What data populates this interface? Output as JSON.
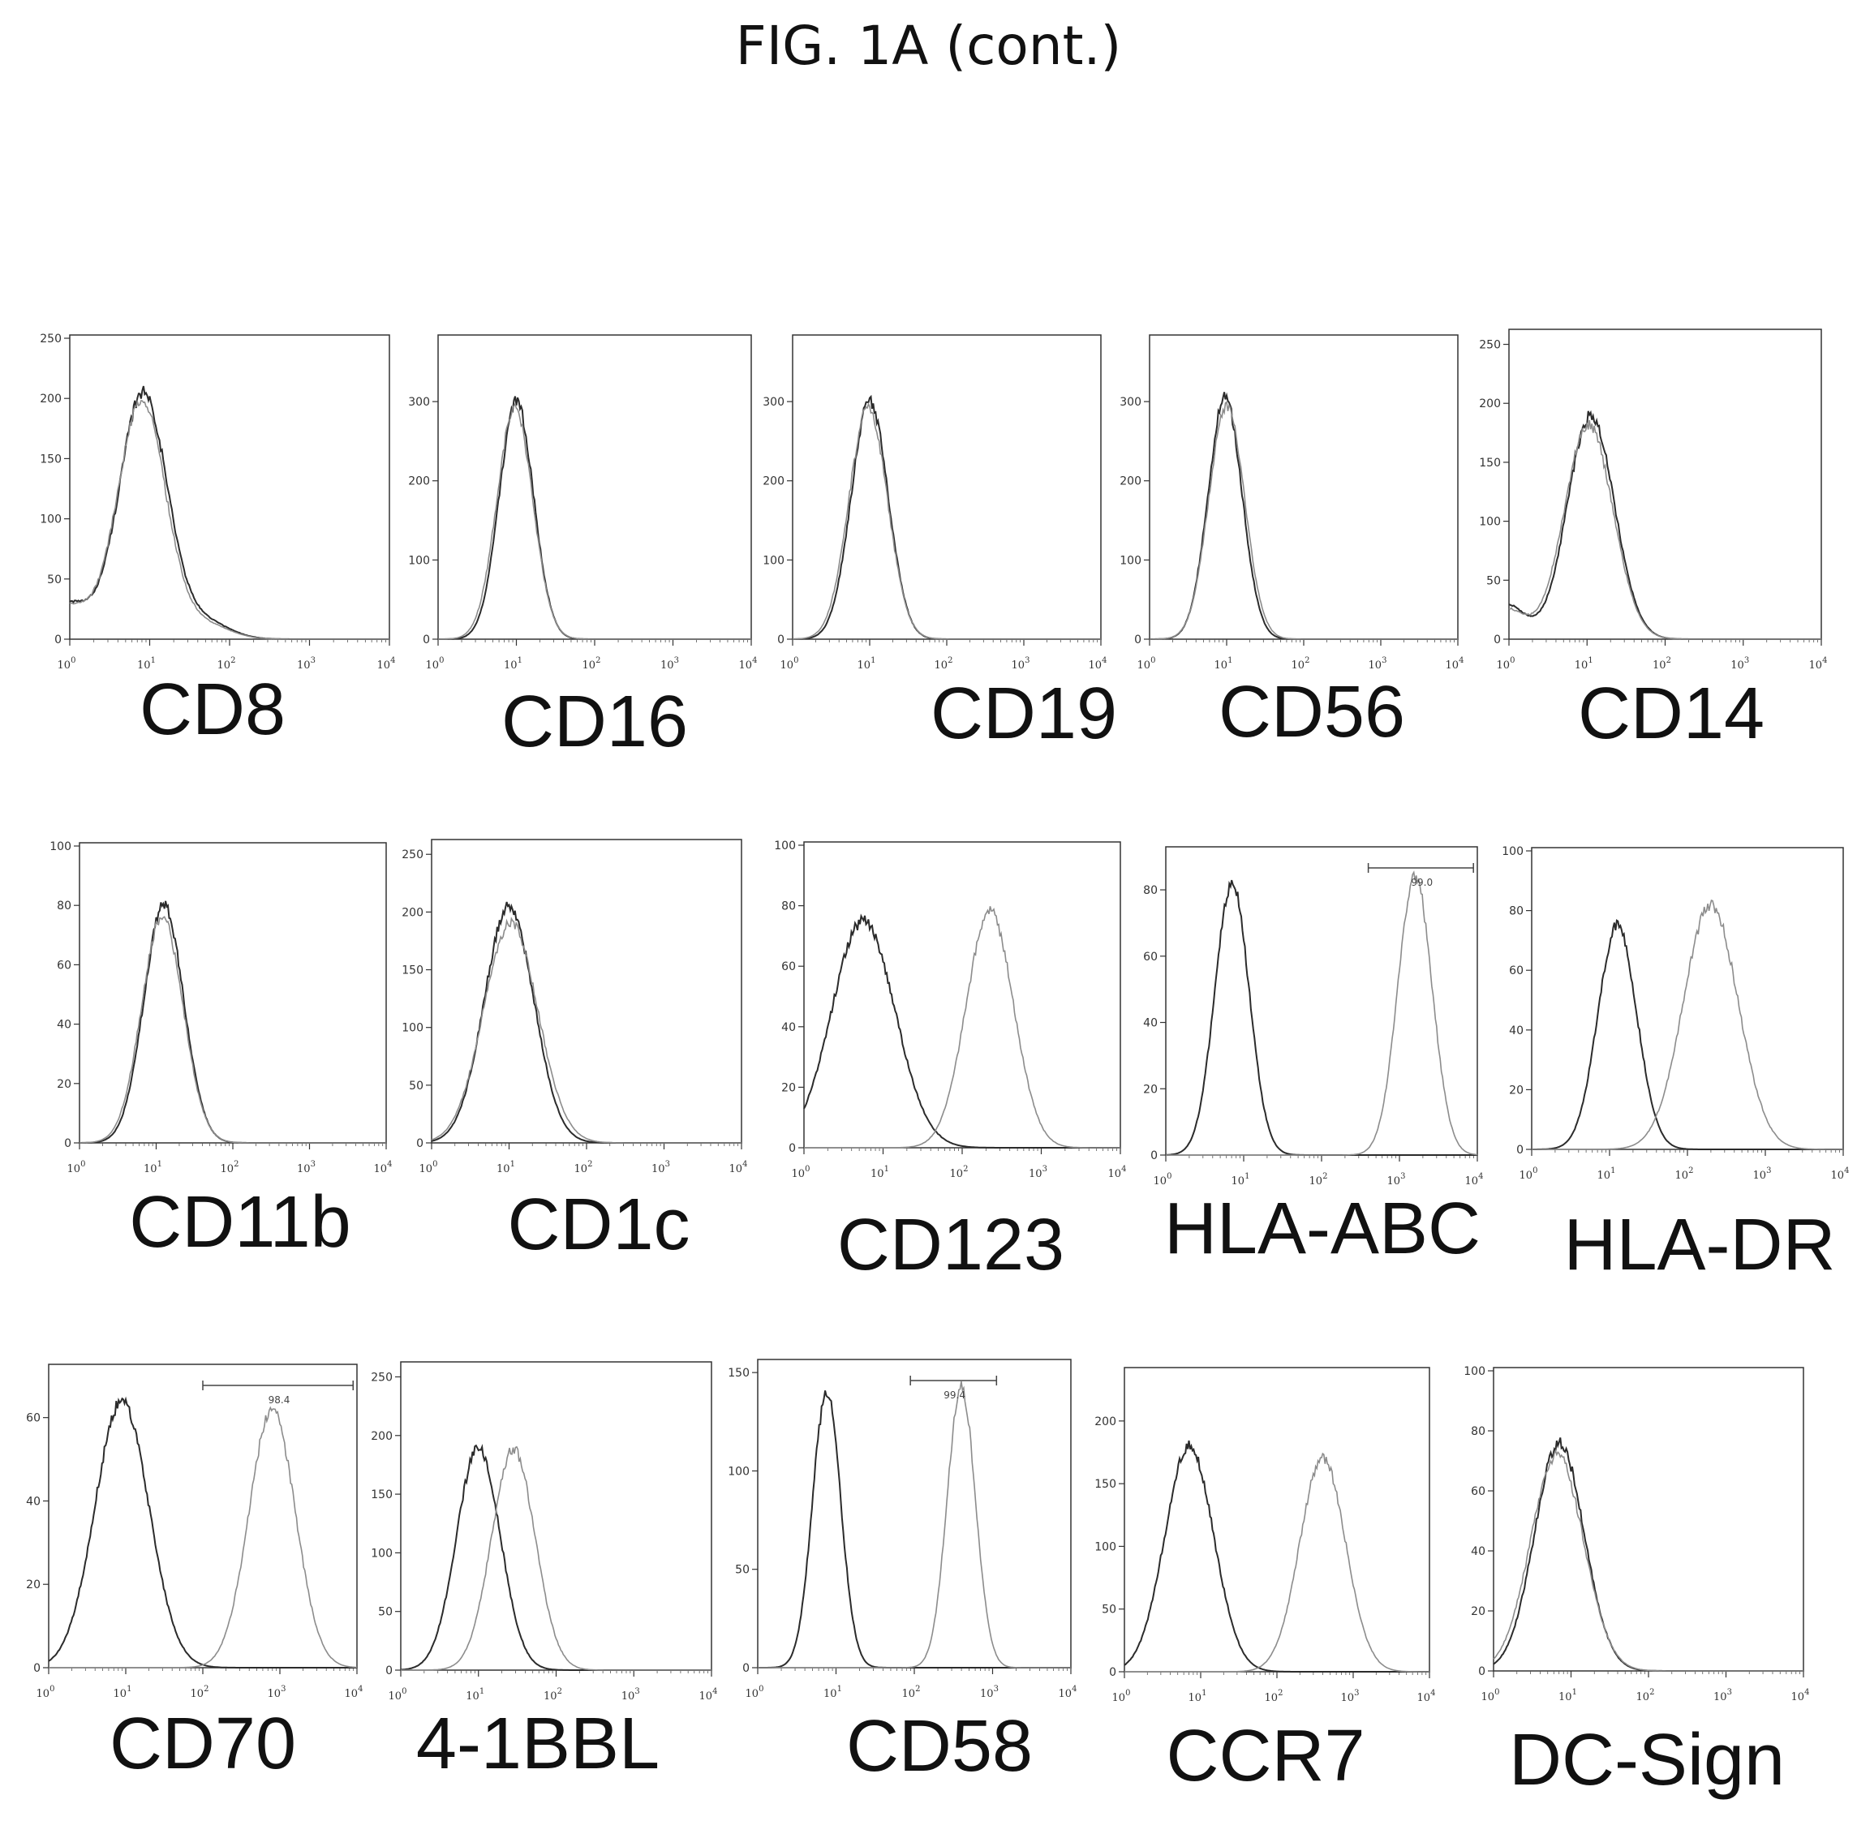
{
  "figure": {
    "title": "FIG. 1A (cont.)"
  },
  "chart_data": [
    {
      "type": "line",
      "label": "CD8",
      "x_axis": "log",
      "xlim": [
        1,
        10000
      ],
      "xticks": [
        "10^0",
        "10^1",
        "10^2",
        "10^3",
        "10^4"
      ],
      "ylim": [
        0,
        250
      ],
      "yticks": [
        0,
        50,
        100,
        150,
        200,
        250
      ],
      "series": [
        {
          "curves": [
            {
              "mean": 0.92,
              "sd": 0.3,
              "peak": 205
            },
            {
              "mean": -0.05,
              "sd": 0.3,
              "peak": 30
            },
            {
              "mean": 1.7,
              "sd": 0.3,
              "peak": 14
            }
          ]
        },
        {
          "curves": [
            {
              "mean": 0.9,
              "sd": 0.3,
              "peak": 198
            },
            {
              "mean": -0.05,
              "sd": 0.3,
              "peak": 28
            },
            {
              "mean": 1.7,
              "sd": 0.3,
              "peak": 12
            }
          ]
        }
      ]
    },
    {
      "type": "line",
      "label": "CD16",
      "x_axis": "log",
      "xlim": [
        1,
        10000
      ],
      "xticks": [
        "10^0",
        "10^1",
        "10^2",
        "10^3",
        "10^4"
      ],
      "ylim": [
        0,
        380
      ],
      "yticks": [
        0,
        100,
        200,
        300
      ],
      "series": [
        {
          "curves": [
            {
              "mean": 1.0,
              "sd": 0.22,
              "peak": 300
            }
          ]
        },
        {
          "curves": [
            {
              "mean": 0.98,
              "sd": 0.23,
              "peak": 290
            }
          ]
        }
      ]
    },
    {
      "type": "line",
      "label": "CD19",
      "x_axis": "log",
      "xlim": [
        1,
        10000
      ],
      "xticks": [
        "10^0",
        "10^1",
        "10^2",
        "10^3",
        "10^4"
      ],
      "ylim": [
        0,
        380
      ],
      "yticks": [
        0,
        100,
        200,
        300
      ],
      "series": [
        {
          "curves": [
            {
              "mean": 1.0,
              "sd": 0.24,
              "peak": 300
            }
          ]
        },
        {
          "curves": [
            {
              "mean": 0.98,
              "sd": 0.25,
              "peak": 292
            }
          ]
        }
      ]
    },
    {
      "type": "line",
      "label": "CD56",
      "x_axis": "log",
      "xlim": [
        1,
        10000
      ],
      "xticks": [
        "10^0",
        "10^1",
        "10^2",
        "10^3",
        "10^4"
      ],
      "ylim": [
        0,
        380
      ],
      "yticks": [
        0,
        100,
        200,
        300
      ],
      "series": [
        {
          "curves": [
            {
              "mean": 0.98,
              "sd": 0.22,
              "peak": 305
            }
          ]
        },
        {
          "curves": [
            {
              "mean": 1.0,
              "sd": 0.23,
              "peak": 296
            }
          ]
        }
      ]
    },
    {
      "type": "line",
      "label": "CD14",
      "x_axis": "log",
      "xlim": [
        1,
        10000
      ],
      "xticks": [
        "10^0",
        "10^1",
        "10^2",
        "10^3",
        "10^4"
      ],
      "ylim": [
        0,
        260
      ],
      "yticks": [
        0,
        50,
        100,
        150,
        200,
        250
      ],
      "series": [
        {
          "curves": [
            {
              "mean": 1.05,
              "sd": 0.3,
              "peak": 190
            },
            {
              "mean": -0.05,
              "sd": 0.25,
              "peak": 30
            }
          ]
        },
        {
          "curves": [
            {
              "mean": 1.02,
              "sd": 0.31,
              "peak": 182
            },
            {
              "mean": -0.05,
              "sd": 0.25,
              "peak": 26
            }
          ]
        }
      ]
    },
    {
      "type": "line",
      "label": "CD11b",
      "x_axis": "log",
      "xlim": [
        1,
        10000
      ],
      "xticks": [
        "10^0",
        "10^1",
        "10^2",
        "10^3",
        "10^4"
      ],
      "ylim": [
        0,
        100
      ],
      "yticks": [
        0,
        20,
        40,
        60,
        80,
        100
      ],
      "series": [
        {
          "curves": [
            {
              "mean": 1.1,
              "sd": 0.26,
              "peak": 80
            }
          ]
        },
        {
          "curves": [
            {
              "mean": 1.08,
              "sd": 0.27,
              "peak": 76
            }
          ]
        }
      ]
    },
    {
      "type": "line",
      "label": "CD1c",
      "x_axis": "log",
      "xlim": [
        1,
        10000
      ],
      "xticks": [
        "10^0",
        "10^1",
        "10^2",
        "10^3",
        "10^4"
      ],
      "ylim": [
        0,
        260
      ],
      "yticks": [
        0,
        50,
        100,
        150,
        200,
        250
      ],
      "series": [
        {
          "curves": [
            {
              "mean": 1.0,
              "sd": 0.32,
              "peak": 205
            }
          ]
        },
        {
          "curves": [
            {
              "mean": 1.02,
              "sd": 0.35,
              "peak": 190
            }
          ]
        }
      ]
    },
    {
      "type": "line",
      "label": "CD123",
      "x_axis": "log",
      "xlim": [
        1,
        10000
      ],
      "xticks": [
        "10^0",
        "10^1",
        "10^2",
        "10^3",
        "10^4"
      ],
      "ylim": [
        0,
        100
      ],
      "yticks": [
        0,
        20,
        40,
        60,
        80,
        100
      ],
      "series": [
        {
          "curves": [
            {
              "mean": 0.75,
              "sd": 0.4,
              "peak": 75
            }
          ]
        },
        {
          "curves": [
            {
              "mean": 2.35,
              "sd": 0.3,
              "peak": 78
            }
          ]
        }
      ]
    },
    {
      "type": "line",
      "label": "HLA-ABC",
      "x_axis": "log",
      "xlim": [
        1,
        10000
      ],
      "xticks": [
        "10^0",
        "10^1",
        "10^2",
        "10^3",
        "10^4"
      ],
      "ylim": [
        0,
        92
      ],
      "yticks": [
        0,
        20,
        40,
        60,
        80
      ],
      "gate": {
        "text": "99.0",
        "from": 2.6,
        "to": 3.95
      },
      "series": [
        {
          "curves": [
            {
              "mean": 0.85,
              "sd": 0.22,
              "peak": 82
            }
          ]
        },
        {
          "curves": [
            {
              "mean": 3.2,
              "sd": 0.22,
              "peak": 84
            }
          ]
        }
      ]
    },
    {
      "type": "line",
      "label": "HLA-DR",
      "x_axis": "log",
      "xlim": [
        1,
        10000
      ],
      "xticks": [
        "10^0",
        "10^1",
        "10^2",
        "10^3",
        "10^4"
      ],
      "ylim": [
        0,
        100
      ],
      "yticks": [
        0,
        20,
        40,
        60,
        80,
        100
      ],
      "series": [
        {
          "curves": [
            {
              "mean": 1.1,
              "sd": 0.25,
              "peak": 75
            }
          ]
        },
        {
          "curves": [
            {
              "mean": 2.3,
              "sd": 0.35,
              "peak": 82
            }
          ]
        }
      ]
    },
    {
      "type": "line",
      "label": "CD70",
      "x_axis": "log",
      "xlim": [
        1,
        10000
      ],
      "xticks": [
        "10^0",
        "10^1",
        "10^2",
        "10^3",
        "10^4"
      ],
      "ylim": [
        0,
        72
      ],
      "yticks": [
        0,
        20,
        40,
        60
      ],
      "gate": {
        "text": "98.4",
        "from": 2.0,
        "to": 3.95
      },
      "series": [
        {
          "curves": [
            {
              "mean": 0.95,
              "sd": 0.35,
              "peak": 64
            }
          ]
        },
        {
          "curves": [
            {
              "mean": 2.9,
              "sd": 0.3,
              "peak": 62
            }
          ]
        }
      ]
    },
    {
      "type": "line",
      "label": "4-1BBL",
      "x_axis": "log",
      "xlim": [
        1,
        10000
      ],
      "xticks": [
        "10^0",
        "10^1",
        "10^2",
        "10^3",
        "10^4"
      ],
      "ylim": [
        0,
        260
      ],
      "yticks": [
        0,
        50,
        100,
        150,
        200,
        250
      ],
      "series": [
        {
          "curves": [
            {
              "mean": 1.0,
              "sd": 0.28,
              "peak": 190
            }
          ]
        },
        {
          "curves": [
            {
              "mean": 1.45,
              "sd": 0.28,
              "peak": 188
            }
          ]
        }
      ]
    },
    {
      "type": "line",
      "label": "CD58",
      "x_axis": "log",
      "xlim": [
        1,
        10000
      ],
      "xticks": [
        "10^0",
        "10^1",
        "10^2",
        "10^3",
        "10^4"
      ],
      "ylim": [
        0,
        155
      ],
      "yticks": [
        0,
        50,
        100,
        150
      ],
      "gate": {
        "text": "99.4",
        "from": 1.95,
        "to": 3.05
      },
      "series": [
        {
          "curves": [
            {
              "mean": 0.88,
              "sd": 0.18,
              "peak": 140
            }
          ]
        },
        {
          "curves": [
            {
              "mean": 2.6,
              "sd": 0.18,
              "peak": 143
            }
          ]
        }
      ]
    },
    {
      "type": "line",
      "label": "CCR7",
      "x_axis": "log",
      "xlim": [
        1,
        10000
      ],
      "xticks": [
        "10^0",
        "10^1",
        "10^2",
        "10^3",
        "10^4"
      ],
      "ylim": [
        0,
        240
      ],
      "yticks": [
        0,
        50,
        100,
        150,
        200
      ],
      "series": [
        {
          "curves": [
            {
              "mean": 0.85,
              "sd": 0.32,
              "peak": 180
            }
          ]
        },
        {
          "curves": [
            {
              "mean": 2.6,
              "sd": 0.3,
              "peak": 170
            }
          ]
        }
      ]
    },
    {
      "type": "line",
      "label": "DC-Sign",
      "x_axis": "log",
      "xlim": [
        1,
        10000
      ],
      "xticks": [
        "10^0",
        "10^1",
        "10^2",
        "10^3",
        "10^4"
      ],
      "ylim": [
        0,
        100
      ],
      "yticks": [
        0,
        20,
        40,
        60,
        80,
        100
      ],
      "series": [
        {
          "curves": [
            {
              "mean": 0.85,
              "sd": 0.32,
              "peak": 76
            }
          ]
        },
        {
          "curves": [
            {
              "mean": 0.82,
              "sd": 0.34,
              "peak": 72
            }
          ]
        }
      ]
    }
  ]
}
